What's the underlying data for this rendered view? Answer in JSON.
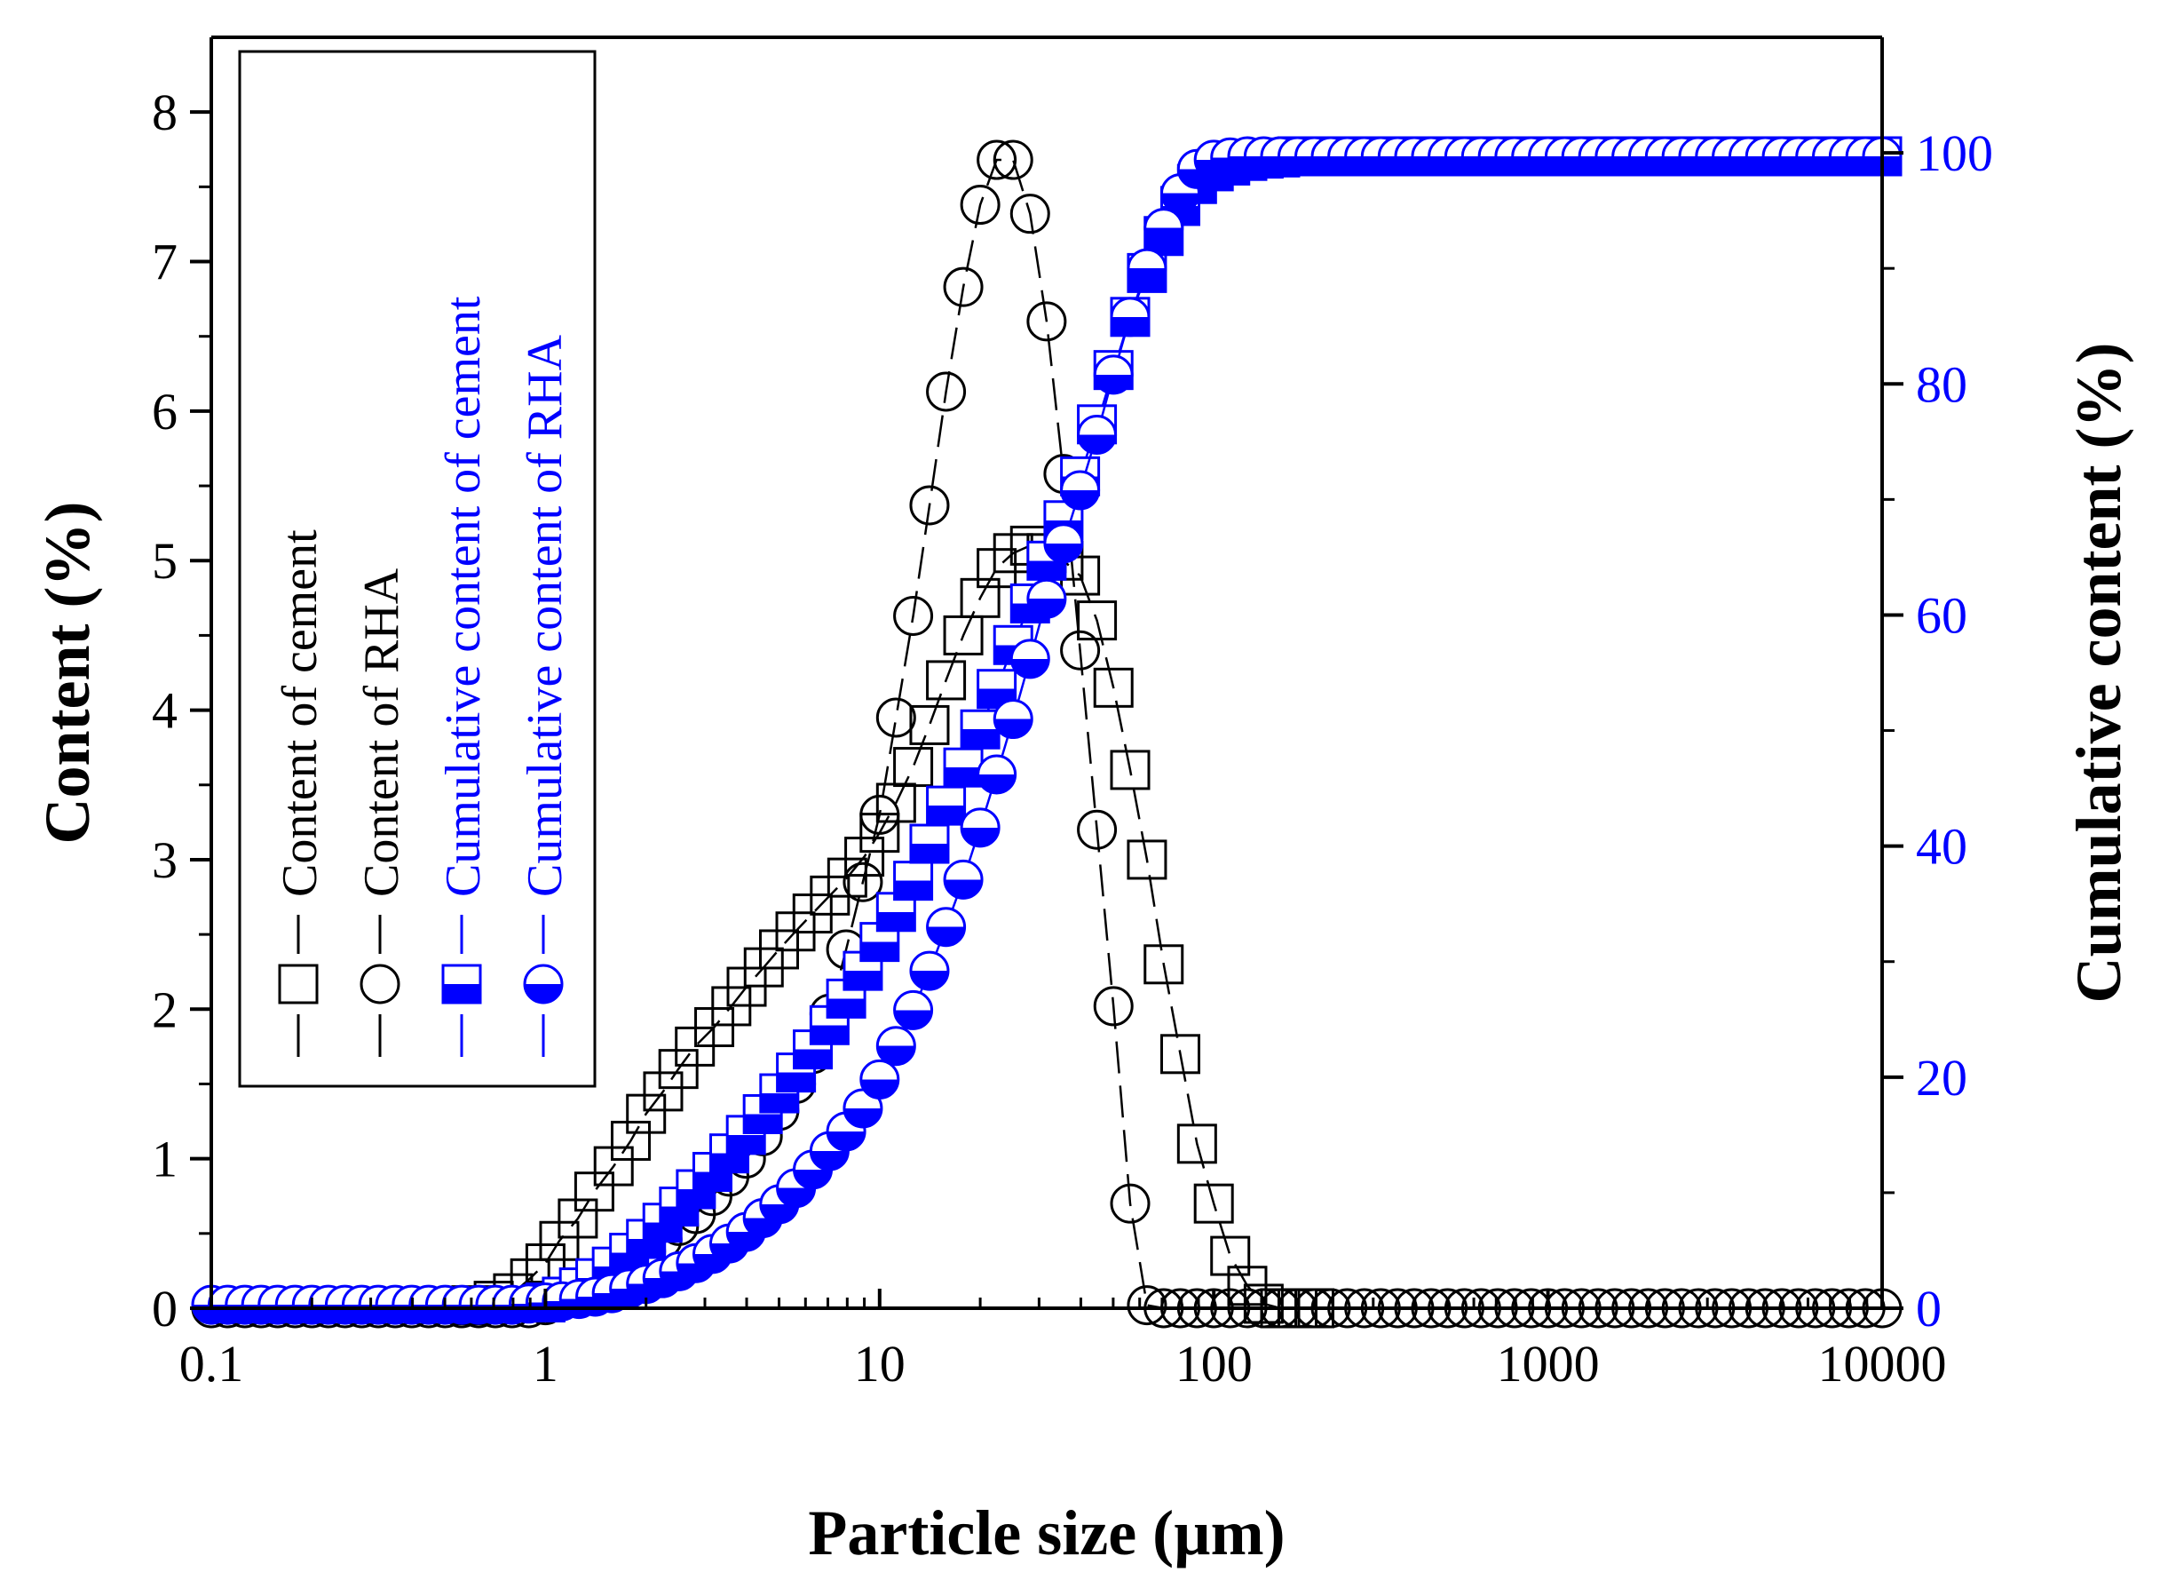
{
  "chart_data": {
    "type": "scatter",
    "xlabel": "Particle size (µm)",
    "ylabel": "Content (%)",
    "y2label": "Cumulative content (%)",
    "xscale": "log",
    "xlim": [
      0.1,
      10000
    ],
    "ylim": [
      0,
      8.5
    ],
    "y2lim": [
      0,
      110
    ],
    "xticks": [
      "0.1",
      "1",
      "10",
      "100",
      "1000",
      "10000"
    ],
    "yticks": [
      "0",
      "1",
      "2",
      "3",
      "4",
      "5",
      "6",
      "7",
      "8"
    ],
    "y2ticks": [
      "0",
      "20",
      "40",
      "60",
      "80",
      "100"
    ],
    "right_axis_color": "#0000ff",
    "legend_position": "top-left",
    "legend": [
      {
        "label": "Content of cement",
        "marker": "square-open",
        "color": "#000000",
        "axis": "left"
      },
      {
        "label": "Content of RHA",
        "marker": "circle-open",
        "color": "#000000",
        "axis": "left"
      },
      {
        "label": "Cumulative content of cement",
        "marker": "square-half",
        "color": "#0000ff",
        "axis": "right"
      },
      {
        "label": "Cumulative content of RHA",
        "marker": "circle-half",
        "color": "#0000ff",
        "axis": "right"
      }
    ],
    "series": [
      {
        "name": "Content of cement",
        "axis": "left",
        "marker": "square-open",
        "color": "#000000",
        "x": [
          0.6,
          0.7,
          0.8,
          0.9,
          1.0,
          1.1,
          1.25,
          1.4,
          1.6,
          1.8,
          2.0,
          2.25,
          2.5,
          2.8,
          3.2,
          3.6,
          4.0,
          4.5,
          5.0,
          5.6,
          6.3,
          7.1,
          8.0,
          9.0,
          10.0,
          11.2,
          12.6,
          14.1,
          15.8,
          17.8,
          20.0,
          22.4,
          25.1,
          28.2,
          31.6,
          35.5,
          39.8,
          44.7,
          50.1,
          56.2,
          63.1,
          70.8,
          79.4,
          89.1,
          100,
          112,
          126,
          141,
          158,
          178,
          200
        ],
        "values": [
          0.02,
          0.05,
          0.1,
          0.2,
          0.3,
          0.45,
          0.6,
          0.78,
          0.95,
          1.12,
          1.3,
          1.45,
          1.6,
          1.75,
          1.88,
          2.02,
          2.15,
          2.28,
          2.4,
          2.52,
          2.64,
          2.76,
          2.88,
          3.02,
          3.18,
          3.38,
          3.62,
          3.9,
          4.2,
          4.5,
          4.75,
          4.95,
          5.05,
          5.1,
          5.05,
          5.0,
          4.9,
          4.6,
          4.15,
          3.6,
          3.0,
          2.3,
          1.7,
          1.1,
          0.7,
          0.35,
          0.15,
          0.03,
          0.0,
          0.0,
          0.0
        ]
      },
      {
        "name": "Content of RHA",
        "axis": "left",
        "marker": "circle-open",
        "color": "#000000",
        "x": [
          0.1,
          0.112,
          0.126,
          0.141,
          0.158,
          0.178,
          0.2,
          0.224,
          0.251,
          0.282,
          0.316,
          0.355,
          0.398,
          0.447,
          0.501,
          0.562,
          0.631,
          0.708,
          0.794,
          0.891,
          1.0,
          1.12,
          1.26,
          1.41,
          1.58,
          1.78,
          2.0,
          2.24,
          2.51,
          2.82,
          3.16,
          3.55,
          3.98,
          4.47,
          5.01,
          5.62,
          6.31,
          7.08,
          7.94,
          8.91,
          10.0,
          11.2,
          12.6,
          14.1,
          15.8,
          17.8,
          20.0,
          22.4,
          25.1,
          28.2,
          31.6,
          35.5,
          39.8,
          44.7,
          50.1,
          56.2,
          63.1,
          70.8,
          79.4,
          89.1,
          100,
          112,
          126,
          141,
          158,
          178,
          200,
          224,
          251,
          282,
          316,
          355,
          398,
          447,
          501,
          562,
          631,
          708,
          794,
          891,
          1000,
          1122,
          1259,
          1413,
          1585,
          1778,
          1995,
          2239,
          2512,
          2818,
          3162,
          3548,
          3981,
          4467,
          5012,
          5623,
          6310,
          7079,
          7943,
          8913,
          10000
        ],
        "values": [
          0,
          0,
          0,
          0,
          0,
          0,
          0,
          0,
          0,
          0,
          0,
          0,
          0,
          0,
          0,
          0,
          0,
          0,
          0,
          0,
          0.02,
          0.05,
          0.1,
          0.15,
          0.22,
          0.3,
          0.38,
          0.46,
          0.55,
          0.63,
          0.75,
          0.88,
          1.0,
          1.15,
          1.32,
          1.5,
          1.7,
          1.97,
          2.4,
          2.85,
          3.3,
          3.95,
          4.63,
          5.37,
          6.13,
          6.83,
          7.38,
          7.68,
          7.68,
          7.32,
          6.6,
          5.58,
          4.4,
          3.2,
          2.02,
          0.7,
          0.02,
          0,
          0,
          0,
          0,
          0,
          0,
          0,
          0,
          0,
          0,
          0,
          0,
          0,
          0,
          0,
          0,
          0,
          0,
          0,
          0,
          0,
          0,
          0,
          0,
          0,
          0,
          0,
          0,
          0,
          0,
          0,
          0,
          0,
          0,
          0,
          0,
          0,
          0,
          0,
          0,
          0,
          0,
          0,
          0
        ],
        "note": "RHA content x/values are aligned index-by-index"
      },
      {
        "name": "Cumulative content of cement",
        "axis": "right",
        "marker": "square-half",
        "color": "#0000ff",
        "x": [
          1.0,
          1.12,
          1.26,
          1.41,
          1.58,
          1.78,
          2.0,
          2.24,
          2.51,
          2.82,
          3.16,
          3.55,
          3.98,
          4.47,
          5.01,
          5.62,
          6.31,
          7.08,
          7.94,
          8.91,
          10.0,
          11.2,
          12.6,
          14.1,
          15.8,
          17.8,
          20.0,
          22.4,
          25.1,
          28.2,
          31.6,
          35.5,
          39.8,
          44.7,
          50.1,
          56.2,
          63.1,
          70.8,
          79.4,
          89.1,
          100,
          112,
          126,
          141,
          158,
          178,
          200,
          224,
          251,
          282,
          316,
          355,
          398,
          447,
          501,
          562,
          631,
          708,
          794,
          891,
          1000,
          1122,
          1259,
          1413,
          1585,
          1778,
          1995,
          2239,
          2512,
          2818,
          3162,
          3548,
          3981,
          4467,
          5012,
          5623,
          6310,
          7079,
          7943,
          8913,
          10000
        ],
        "values": [
          0.5,
          1.0,
          1.8,
          2.6,
          3.6,
          4.8,
          6.0,
          7.4,
          8.8,
          10.3,
          11.8,
          13.4,
          15.0,
          16.8,
          18.6,
          20.4,
          22.4,
          24.5,
          26.8,
          29.2,
          31.7,
          34.3,
          37.0,
          40.2,
          43.5,
          46.8,
          50.1,
          53.6,
          57.4,
          61.0,
          64.7,
          68.2,
          72.0,
          76.5,
          81.2,
          85.8,
          89.6,
          92.8,
          95.4,
          97.3,
          98.4,
          98.9,
          99.3,
          99.5,
          99.6,
          99.7,
          99.7,
          99.7,
          99.7,
          99.7,
          99.7,
          99.7,
          99.7,
          99.7,
          99.7,
          99.7,
          99.7,
          99.7,
          99.7,
          99.7,
          99.7,
          99.7,
          99.7,
          99.7,
          99.7,
          99.7,
          99.7,
          99.7,
          99.7,
          99.7,
          99.7,
          99.7,
          99.7,
          99.7,
          99.7,
          99.7,
          99.7,
          99.7,
          99.7,
          99.7,
          99.7
        ]
      },
      {
        "name": "Cumulative content of RHA",
        "axis": "right",
        "marker": "circle-half",
        "color": "#0000ff",
        "x": [
          0.1,
          0.112,
          0.126,
          0.141,
          0.158,
          0.178,
          0.2,
          0.224,
          0.251,
          0.282,
          0.316,
          0.355,
          0.398,
          0.447,
          0.501,
          0.562,
          0.631,
          0.708,
          0.794,
          0.891,
          1.0,
          1.12,
          1.26,
          1.41,
          1.58,
          1.78,
          2.0,
          2.24,
          2.51,
          2.82,
          3.16,
          3.55,
          3.98,
          4.47,
          5.01,
          5.62,
          6.31,
          7.08,
          7.94,
          8.91,
          10.0,
          11.2,
          12.6,
          14.1,
          15.8,
          17.8,
          20.0,
          22.4,
          25.1,
          28.2,
          31.6,
          35.5,
          39.8,
          44.7,
          50.1,
          56.2,
          63.1,
          70.8,
          79.4,
          89.1,
          100,
          112,
          126,
          141,
          158,
          178,
          200,
          224,
          251,
          282,
          316,
          355,
          398,
          447,
          501,
          562,
          631,
          708,
          794,
          891,
          1000,
          1122,
          1259,
          1413,
          1585,
          1778,
          1995,
          2239,
          2512,
          2818,
          3162,
          3548,
          3981,
          4467,
          5012,
          5623,
          6310,
          7079,
          7943,
          8913,
          10000
        ],
        "values": [
          0.3,
          0.3,
          0.3,
          0.3,
          0.3,
          0.3,
          0.3,
          0.3,
          0.3,
          0.3,
          0.3,
          0.3,
          0.3,
          0.3,
          0.3,
          0.3,
          0.3,
          0.3,
          0.3,
          0.4,
          0.5,
          0.6,
          0.8,
          1.0,
          1.3,
          1.7,
          2.1,
          2.6,
          3.2,
          3.9,
          4.7,
          5.6,
          6.6,
          7.8,
          9.0,
          10.4,
          12.0,
          13.6,
          15.3,
          17.3,
          19.8,
          22.7,
          25.8,
          29.2,
          33.0,
          37.1,
          41.6,
          46.2,
          51.0,
          56.2,
          61.4,
          66.2,
          70.8,
          75.6,
          80.8,
          85.8,
          90.0,
          93.5,
          96.5,
          98.6,
          99.4,
          99.6,
          99.7,
          99.7,
          99.7,
          99.7,
          99.7,
          99.7,
          99.7,
          99.7,
          99.7,
          99.7,
          99.7,
          99.7,
          99.7,
          99.7,
          99.7,
          99.7,
          99.7,
          99.7,
          99.7,
          99.7,
          99.7,
          99.7,
          99.7,
          99.7,
          99.7,
          99.7,
          99.7,
          99.7,
          99.7,
          99.7,
          99.7,
          99.7,
          99.7,
          99.7,
          99.7,
          99.7,
          99.7,
          99.7,
          99.7
        ]
      }
    ]
  }
}
